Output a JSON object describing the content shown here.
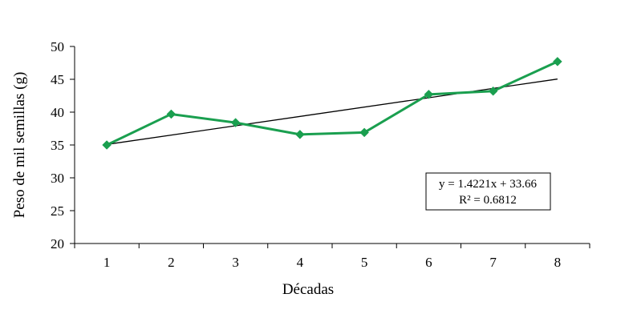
{
  "chart_data": {
    "type": "line",
    "x": [
      1,
      2,
      3,
      4,
      5,
      6,
      7,
      8
    ],
    "series": [
      {
        "values": [
          35.0,
          39.7,
          38.4,
          36.6,
          36.9,
          42.7,
          43.2,
          47.7
        ],
        "color": "#1a9f4f"
      }
    ],
    "trendline": {
      "slope": 1.4221,
      "intercept": 33.66,
      "color": "#000000"
    },
    "xlabel": "Décadas",
    "ylabel": "Peso de mil semillas (g)",
    "xticks": [
      "1",
      "2",
      "3",
      "4",
      "5",
      "6",
      "7",
      "8"
    ],
    "yticks": [
      "20",
      "25",
      "30",
      "35",
      "40",
      "45",
      "50"
    ],
    "ylim": [
      20,
      50
    ],
    "xlim": [
      0.5,
      8.5
    ],
    "annotation": {
      "equation": "y = 1.4221x + 33.66",
      "r_squared": "R² = 0.6812"
    },
    "grid": false,
    "legend": "none",
    "marker": "diamond"
  }
}
